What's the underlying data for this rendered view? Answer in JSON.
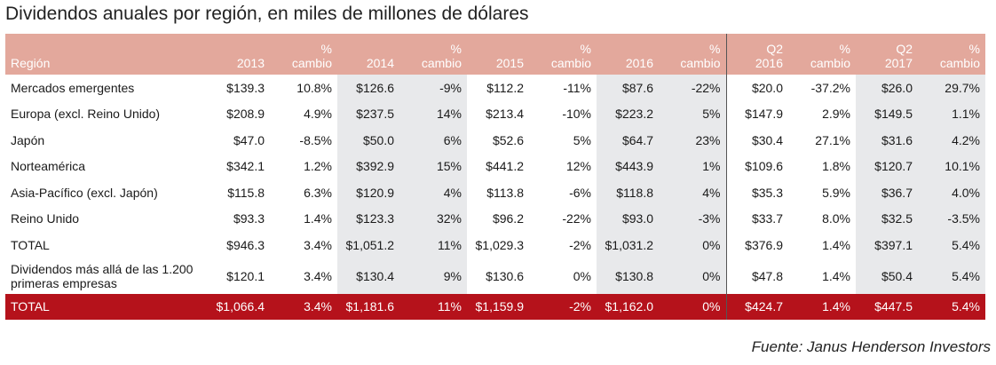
{
  "title": "Dividendos anuales por región, en miles de millones de dólares",
  "header": {
    "region": "Región",
    "cols": [
      {
        "line1": "",
        "line2": "2013"
      },
      {
        "line1": "%",
        "line2": "cambio"
      },
      {
        "line1": "",
        "line2": "2014"
      },
      {
        "line1": "%",
        "line2": "cambio"
      },
      {
        "line1": "",
        "line2": "2015"
      },
      {
        "line1": "%",
        "line2": "cambio"
      },
      {
        "line1": "",
        "line2": "2016"
      },
      {
        "line1": "%",
        "line2": "cambio"
      },
      {
        "line1": "Q2",
        "line2": "2016"
      },
      {
        "line1": "%",
        "line2": "cambio"
      },
      {
        "line1": "Q2",
        "line2": "2017"
      },
      {
        "line1": "%",
        "line2": "cambio"
      }
    ]
  },
  "rows": [
    {
      "region": "Mercados emergentes",
      "values": [
        "$139.3",
        "10.8%",
        "$126.6",
        "-9%",
        "$112.2",
        "-11%",
        "$87.6",
        "-22%",
        "$20.0",
        "-37.2%",
        "$26.0",
        "29.7%"
      ]
    },
    {
      "region": "Europa (excl. Reino Unido)",
      "values": [
        "$208.9",
        "4.9%",
        "$237.5",
        "14%",
        "$213.4",
        "-10%",
        "$223.2",
        "5%",
        "$147.9",
        "2.9%",
        "$149.5",
        "1.1%"
      ]
    },
    {
      "region": "Japón",
      "values": [
        "$47.0",
        "-8.5%",
        "$50.0",
        "6%",
        "$52.6",
        "5%",
        "$64.7",
        "23%",
        "$30.4",
        "27.1%",
        "$31.6",
        "4.2%"
      ]
    },
    {
      "region": "Norteamérica",
      "values": [
        "$342.1",
        "1.2%",
        "$392.9",
        "15%",
        "$441.2",
        "12%",
        "$443.9",
        "1%",
        "$109.6",
        "1.8%",
        "$120.7",
        "10.1%"
      ]
    },
    {
      "region": "Asia-Pacífico (excl. Japón)",
      "values": [
        "$115.8",
        "6.3%",
        "$120.9",
        "4%",
        "$113.8",
        "-6%",
        "$118.8",
        "4%",
        "$35.3",
        "5.9%",
        "$36.7",
        "4.0%"
      ]
    },
    {
      "region": "Reino Unido",
      "values": [
        "$93.3",
        "1.4%",
        "$123.3",
        "32%",
        "$96.2",
        "-22%",
        "$93.0",
        "-3%",
        "$33.7",
        "8.0%",
        "$32.5",
        "-3.5%"
      ]
    },
    {
      "region": "TOTAL",
      "values": [
        "$946.3",
        "3.4%",
        "$1,051.2",
        "11%",
        "$1,029.3",
        "-2%",
        "$1,031.2",
        "0%",
        "$376.9",
        "1.4%",
        "$397.1",
        "5.4%"
      ]
    },
    {
      "region": "Dividendos más allá de las 1.200 primeras empresas",
      "values": [
        "$120.1",
        "3.4%",
        "$130.4",
        "9%",
        "$130.6",
        "0%",
        "$130.8",
        "0%",
        "$47.8",
        "1.4%",
        "$50.4",
        "5.4%"
      ]
    }
  ],
  "grand_total": {
    "region": "TOTAL",
    "values": [
      "$1,066.4",
      "3.4%",
      "$1,181.6",
      "11%",
      "$1,159.9",
      "-2%",
      "$1,162.0",
      "0%",
      "$424.7",
      "1.4%",
      "$447.5",
      "5.4%"
    ]
  },
  "source": "Fuente: Janus Henderson Investors",
  "colors": {
    "header_bg": "#e3a89c",
    "shade": "#e8e9eb",
    "total_bg": "#b5121b"
  }
}
